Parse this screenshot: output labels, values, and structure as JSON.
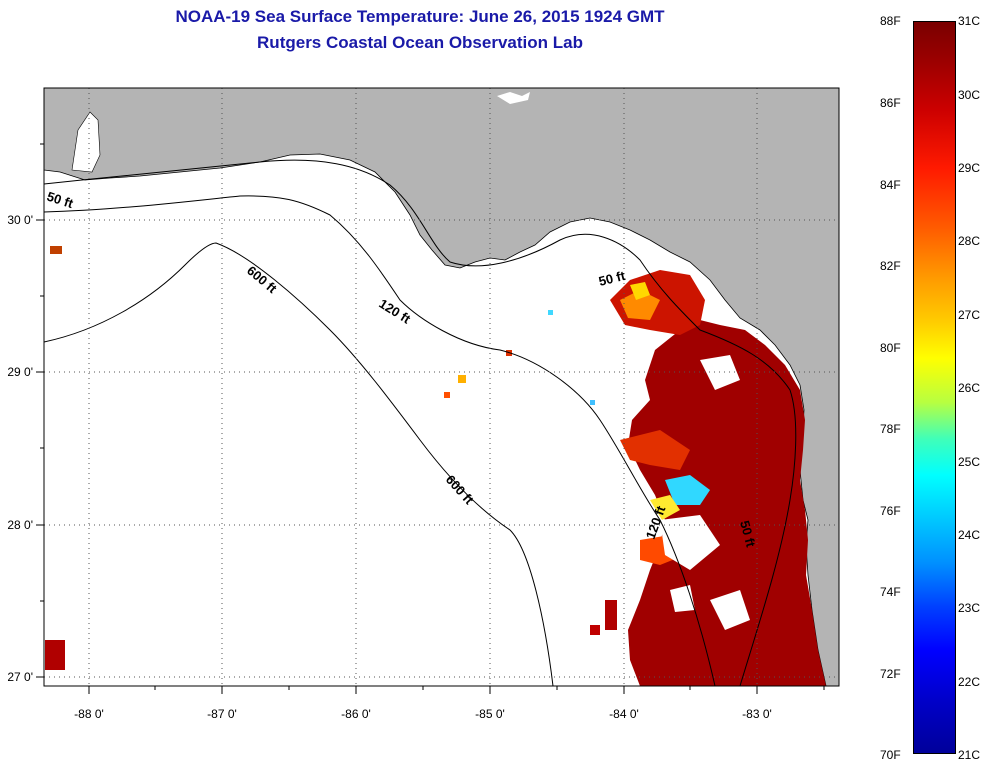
{
  "title_line1": "NOAA-19 Sea Surface Temperature:  June 26, 2015 1924 GMT",
  "title_line2": "Rutgers Coastal Ocean Observation Lab",
  "map": {
    "lon_ticks": [
      "-88 0'",
      "-87 0'",
      "-86 0'",
      "-85 0'",
      "-84 0'",
      "-83 0'"
    ],
    "lat_ticks": [
      "30 0'",
      "29 0'",
      "28 0'",
      "27 0'"
    ],
    "contour_labels": [
      "50 ft",
      "600 ft",
      "120 ft",
      "50 ft",
      "600 ft",
      "120 ft",
      "50 ft"
    ],
    "colors": {
      "land": "#b4b4b4",
      "water_nodata": "#ffffff",
      "sst_warm": "#a00000"
    }
  },
  "colorbar": {
    "fahrenheit": [
      "88F",
      "86F",
      "84F",
      "82F",
      "80F",
      "78F",
      "76F",
      "74F",
      "72F",
      "70F"
    ],
    "celsius": [
      "31C",
      "30C",
      "29C",
      "28C",
      "27C",
      "26C",
      "25C",
      "24C",
      "23C",
      "22C",
      "21C"
    ]
  }
}
